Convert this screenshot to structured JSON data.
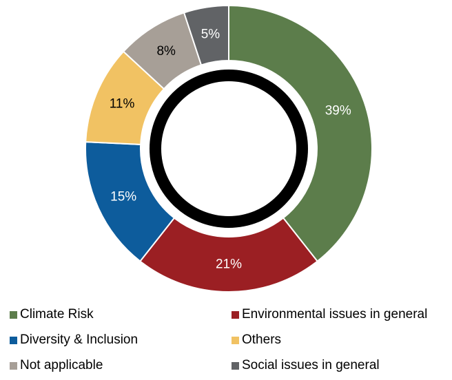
{
  "chart_data": {
    "type": "pie",
    "variant": "donut",
    "title": "",
    "legend_position": "bottom",
    "categories": [
      "Climate Risk",
      "Environmental issues in general",
      "Diversity & Inclusion",
      "Others",
      "Not applicable",
      "Social issues in general"
    ],
    "values": [
      39,
      21,
      15,
      11,
      8,
      5
    ],
    "labels": [
      "39%",
      "21%",
      "15%",
      "11%",
      "8%",
      "5%"
    ],
    "colors": [
      "#5c7d4b",
      "#9b1f23",
      "#0d5c9c",
      "#f1c263",
      "#a79f97",
      "#616366"
    ],
    "label_colors": [
      "#ffffff",
      "#ffffff",
      "#ffffff",
      "#000000",
      "#000000",
      "#ffffff"
    ],
    "unit": "%"
  }
}
